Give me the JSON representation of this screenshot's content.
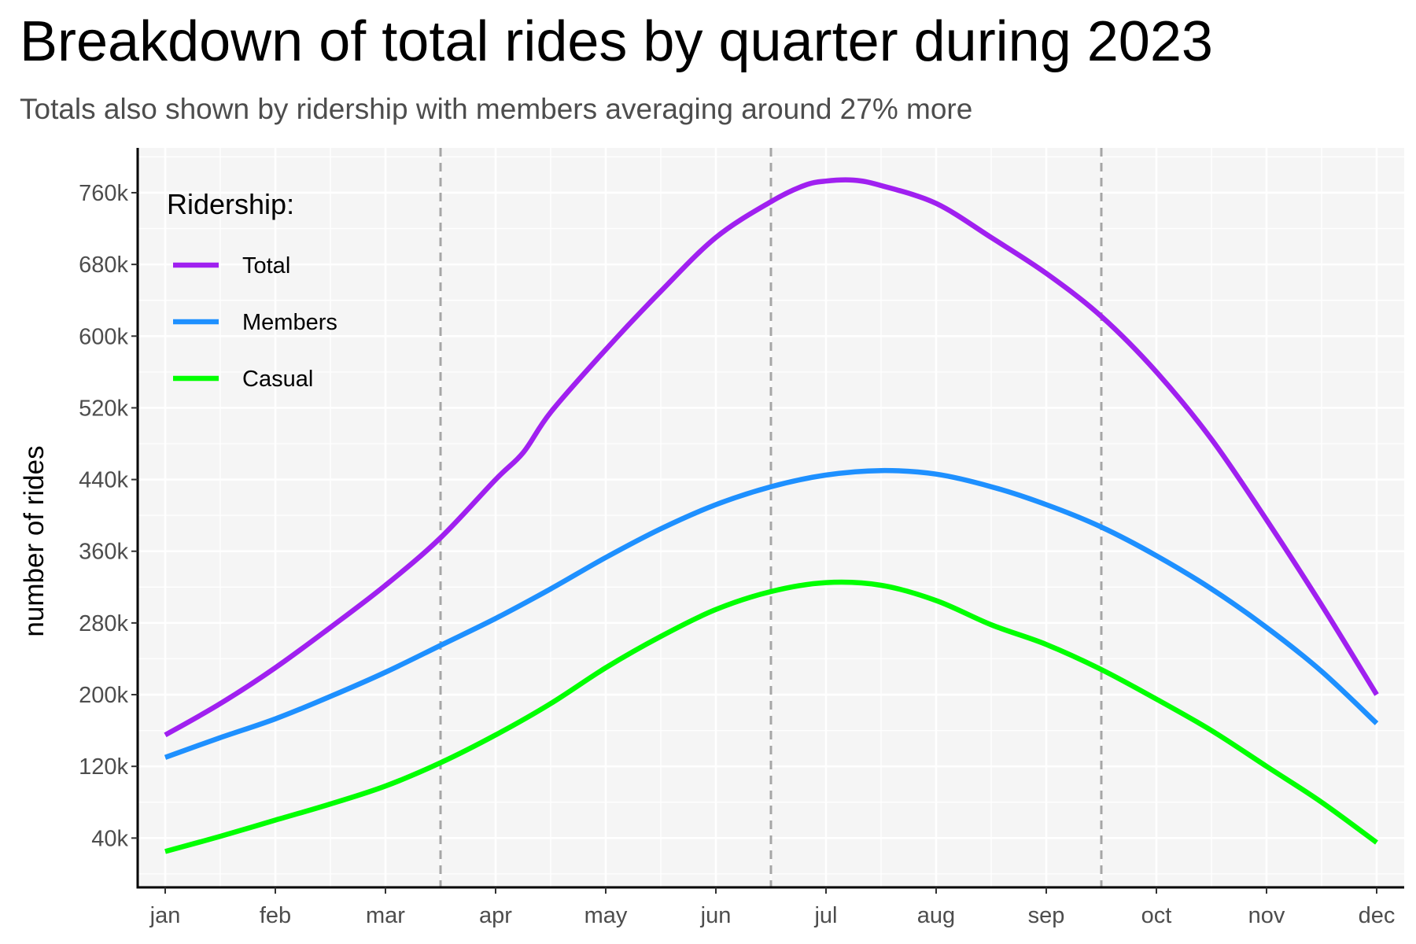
{
  "title": "Breakdown of total rides by quarter during 2023",
  "subtitle": "Totals also shown by ridership with members averaging around 27% more",
  "colors": {
    "panel": "#f5f5f5",
    "grid": "#ffffff",
    "axis": "#000000",
    "divider": "#a6a6a6"
  },
  "legend": {
    "title": "Ridership:",
    "placement": "top-left"
  },
  "chart_data": {
    "type": "line",
    "title": "Breakdown of total rides by quarter during 2023",
    "subtitle": "Totals also shown by ridership with members averaging around 27% more",
    "xlabel": "",
    "ylabel": "number of rides",
    "categories": [
      "jan",
      "feb",
      "mar",
      "apr",
      "may",
      "jun",
      "jul",
      "aug",
      "sep",
      "oct",
      "nov",
      "dec"
    ],
    "xlim": [
      0.75,
      12.25
    ],
    "ylim": [
      -15000,
      810000
    ],
    "yticks": [
      40000,
      120000,
      200000,
      280000,
      360000,
      440000,
      520000,
      600000,
      680000,
      760000
    ],
    "ytick_labels": [
      "40k",
      "120k",
      "200k",
      "280k",
      "360k",
      "440k",
      "520k",
      "600k",
      "680k",
      "760k"
    ],
    "grid": true,
    "quarter_dividers": [
      3.5,
      6.5,
      9.5
    ],
    "series": [
      {
        "name": "Total",
        "color": "#a020f0",
        "x": [
          1,
          1.5,
          2,
          2.5,
          3,
          3.5,
          4,
          4.25,
          4.5,
          5,
          5.5,
          6,
          6.5,
          6.8,
          7,
          7.25,
          7.5,
          8,
          8.5,
          9,
          9.5,
          10,
          10.5,
          11,
          11.5,
          12
        ],
        "values": [
          155000,
          190000,
          230000,
          275000,
          322000,
          375000,
          440000,
          470000,
          515000,
          585000,
          650000,
          710000,
          750000,
          768000,
          773000,
          774000,
          768000,
          748000,
          710000,
          670000,
          622000,
          560000,
          485000,
          395000,
          300000,
          200000
        ]
      },
      {
        "name": "Members",
        "color": "#1e90ff",
        "x": [
          1,
          1.5,
          2,
          2.5,
          3,
          3.5,
          4,
          4.5,
          5,
          5.5,
          6,
          6.5,
          7,
          7.5,
          8,
          8.5,
          9,
          9.5,
          10,
          10.5,
          11,
          11.5,
          12
        ],
        "values": [
          130000,
          152000,
          173000,
          198000,
          225000,
          255000,
          285000,
          318000,
          353000,
          385000,
          412000,
          432000,
          445000,
          450000,
          446000,
          432000,
          412000,
          387000,
          355000,
          318000,
          275000,
          226000,
          168000
        ]
      },
      {
        "name": "Casual",
        "color": "#00ff00",
        "x": [
          1,
          1.5,
          2,
          2.5,
          3,
          3.5,
          4,
          4.5,
          5,
          5.5,
          6,
          6.5,
          7,
          7.5,
          8,
          8.5,
          9,
          9.5,
          10,
          10.5,
          11,
          11.5,
          12
        ],
        "values": [
          25000,
          42000,
          60000,
          78000,
          98000,
          124000,
          155000,
          190000,
          230000,
          265000,
          295000,
          315000,
          325000,
          322000,
          305000,
          278000,
          256000,
          228000,
          195000,
          160000,
          120000,
          80000,
          35000
        ]
      }
    ]
  }
}
